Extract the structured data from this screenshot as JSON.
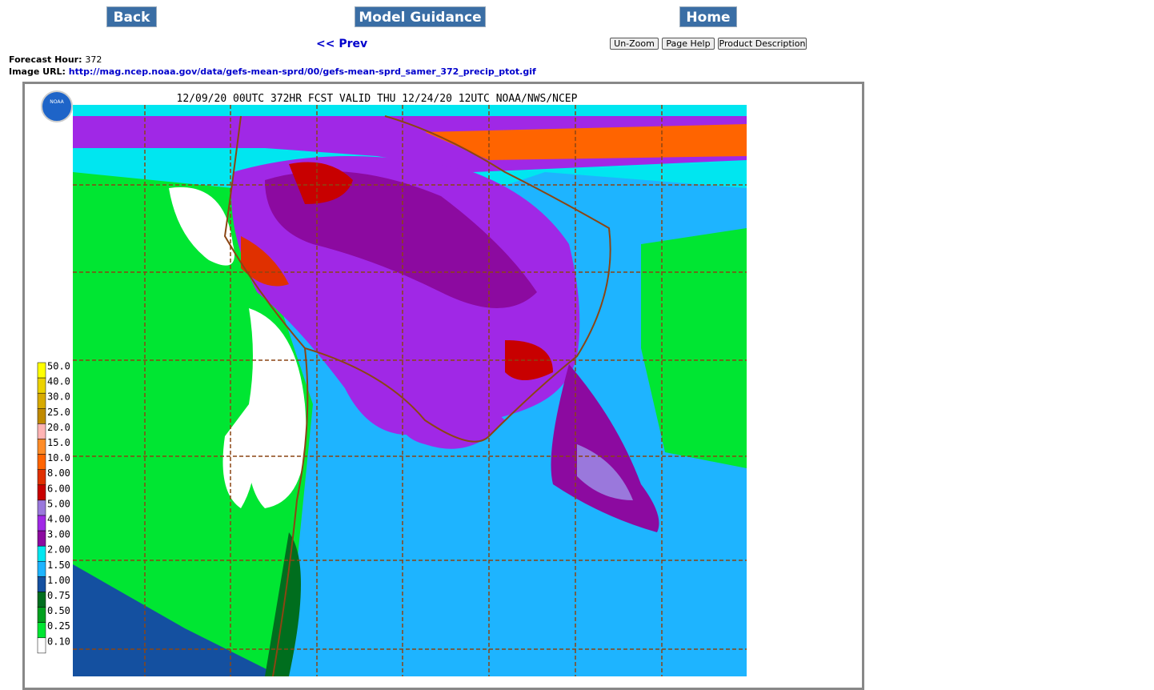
{
  "nav": {
    "buttons": [
      "Back",
      "Model Guidance",
      "Home"
    ],
    "prev": "<< Prev"
  },
  "tools": [
    "Un-Zoom",
    "Page Help",
    "Product Description"
  ],
  "info": {
    "forecast_label": "Forecast Hour:",
    "forecast_value": "372",
    "url_label": "Image URL:",
    "url_value": "http://mag.ncep.noaa.gov/data/gefs-mean-sprd/00/gefs-mean-sprd_samer_372_precip_ptot.gif"
  },
  "map": {
    "title": "12/09/20 00UTC 372HR FCST VALID THU 12/24/20 12UTC NOAA/NWS/NCEP",
    "logo": "NOAA",
    "legend": [
      {
        "label": "50.0",
        "color": "#ffff00"
      },
      {
        "label": "40.0",
        "color": "#ecd200"
      },
      {
        "label": "30.0",
        "color": "#d7aa00"
      },
      {
        "label": "25.0",
        "color": "#c08a00"
      },
      {
        "label": "20.0",
        "color": "#ffb4b4"
      },
      {
        "label": "15.0",
        "color": "#ff8c28"
      },
      {
        "label": "10.0",
        "color": "#ff6400"
      },
      {
        "label": "8.00",
        "color": "#e03000"
      },
      {
        "label": "6.00",
        "color": "#c80000"
      },
      {
        "label": "5.00",
        "color": "#9a78dc"
      },
      {
        "label": "4.00",
        "color": "#a028e6"
      },
      {
        "label": "3.00",
        "color": "#8c0aa0"
      },
      {
        "label": "2.00",
        "color": "#00e6f0"
      },
      {
        "label": "1.50",
        "color": "#1eb4ff"
      },
      {
        "label": "1.00",
        "color": "#1450a0"
      },
      {
        "label": "0.75",
        "color": "#006e1e"
      },
      {
        "label": "0.50",
        "color": "#00a01e"
      },
      {
        "label": "0.25",
        "color": "#00e632"
      },
      {
        "label": "0.10",
        "color": "#ffffff"
      }
    ]
  }
}
